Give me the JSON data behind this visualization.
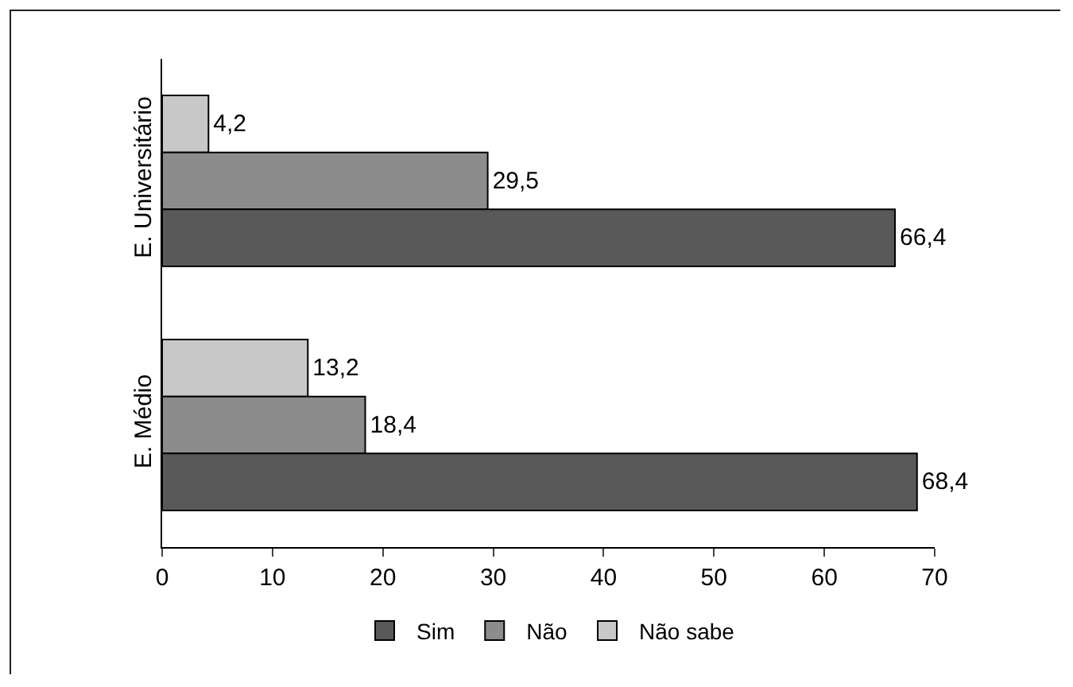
{
  "chart_data": {
    "type": "bar",
    "orientation": "horizontal",
    "categories": [
      "E. Universitário",
      "E. Médio"
    ],
    "series": [
      {
        "name": "Sim",
        "color": "#595959",
        "values": [
          66.4,
          68.4
        ],
        "value_labels": [
          "66,4",
          "68,4"
        ]
      },
      {
        "name": "Não",
        "color": "#8c8c8c",
        "values": [
          29.5,
          18.4
        ],
        "value_labels": [
          "29,5",
          "18,4"
        ]
      },
      {
        "name": "Não sabe",
        "color": "#c8c8c8",
        "values": [
          4.2,
          13.2
        ],
        "value_labels": [
          "4,2",
          "13,2"
        ]
      }
    ],
    "xlim": [
      0,
      70
    ],
    "xticks": [
      0,
      10,
      20,
      30,
      40,
      50,
      60,
      70
    ],
    "grid": false,
    "legend": "bottom"
  }
}
